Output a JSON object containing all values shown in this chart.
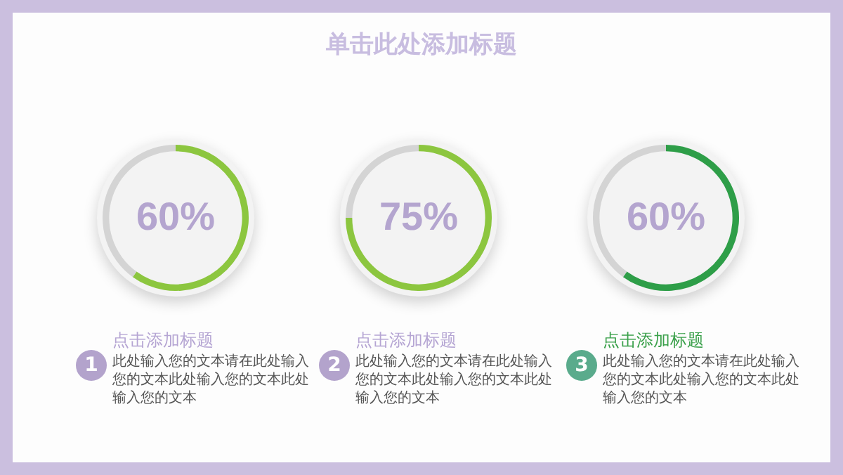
{
  "chart_data": [
    {
      "type": "other",
      "title": "单击此处添加标题"
    },
    {
      "type": "donut",
      "title": "点击添加标题",
      "categories": [
        null,
        null
      ],
      "values": [
        60,
        40
      ],
      "colors": [
        "#8cc63f",
        "#d4d4d4"
      ],
      "value_labels": [
        "60%",
        null
      ],
      "annotations": [
        "1",
        "此处输入您的文本请在此处输入您的文本此处输入您的文本此处输入您的文本"
      ]
    },
    {
      "type": "donut",
      "title": "点击添加标题",
      "categories": [
        null,
        null
      ],
      "values": [
        75,
        25
      ],
      "colors": [
        "#8cc63f",
        "#d4d4d4"
      ],
      "value_labels": [
        "75%",
        null
      ],
      "annotations": [
        "2",
        "此处输入您的文本请在此处输入您的文本此处输入您的文本此处输入您的文本"
      ]
    },
    {
      "type": "donut",
      "title": "点击添加标题",
      "categories": [
        null,
        null
      ],
      "values": [
        60,
        40
      ],
      "colors": [
        "#2e9e48",
        "#d4d4d4"
      ],
      "value_labels": [
        "60%",
        null
      ],
      "annotations": [
        "3",
        "此处输入您的文本请在此处输入您的文本此处输入您的文本此处输入您的文本"
      ]
    }
  ]
}
